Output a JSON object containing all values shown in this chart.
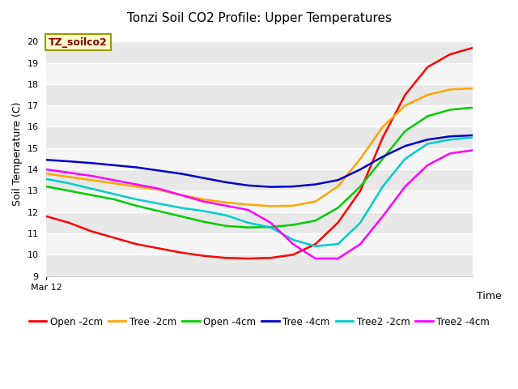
{
  "title": "Tonzi Soil CO2 Profile: Upper Temperatures",
  "ylabel": "Soil Temperature (C)",
  "xlabel": "Time",
  "annotation": "TZ_soilco2",
  "x_tick_label": "Mar 12",
  "ylim": [
    9.0,
    20.5
  ],
  "yticks": [
    9.0,
    10.0,
    11.0,
    12.0,
    13.0,
    14.0,
    15.0,
    16.0,
    17.0,
    18.0,
    19.0,
    20.0
  ],
  "series": {
    "Open -2cm": {
      "color": "#ff0000",
      "x": [
        0,
        1,
        2,
        3,
        4,
        5,
        6,
        7,
        8,
        9,
        10,
        11,
        12,
        13,
        14,
        15,
        16,
        17,
        18,
        19
      ],
      "y": [
        11.8,
        11.5,
        11.1,
        10.8,
        10.5,
        10.3,
        10.1,
        9.95,
        9.85,
        9.82,
        9.85,
        10.0,
        10.5,
        11.5,
        13.0,
        15.5,
        17.5,
        18.8,
        19.4,
        19.7
      ]
    },
    "Tree -2cm": {
      "color": "#ffa500",
      "x": [
        0,
        1,
        2,
        3,
        4,
        5,
        6,
        7,
        8,
        9,
        10,
        11,
        12,
        13,
        14,
        15,
        16,
        17,
        18,
        19
      ],
      "y": [
        13.8,
        13.65,
        13.5,
        13.35,
        13.2,
        13.05,
        12.8,
        12.6,
        12.45,
        12.35,
        12.28,
        12.3,
        12.5,
        13.2,
        14.5,
        16.0,
        17.0,
        17.5,
        17.75,
        17.8
      ]
    },
    "Open -4cm": {
      "color": "#00cc00",
      "x": [
        0,
        1,
        2,
        3,
        4,
        5,
        6,
        7,
        8,
        9,
        10,
        11,
        12,
        13,
        14,
        15,
        16,
        17,
        18,
        19
      ],
      "y": [
        13.2,
        13.0,
        12.8,
        12.6,
        12.3,
        12.05,
        11.8,
        11.55,
        11.35,
        11.28,
        11.3,
        11.4,
        11.6,
        12.2,
        13.2,
        14.5,
        15.8,
        16.5,
        16.8,
        16.9
      ]
    },
    "Tree -4cm": {
      "color": "#0000cc",
      "x": [
        0,
        1,
        2,
        3,
        4,
        5,
        6,
        7,
        8,
        9,
        10,
        11,
        12,
        13,
        14,
        15,
        16,
        17,
        18,
        19
      ],
      "y": [
        14.45,
        14.38,
        14.3,
        14.2,
        14.1,
        13.95,
        13.8,
        13.6,
        13.4,
        13.25,
        13.18,
        13.2,
        13.3,
        13.5,
        14.0,
        14.6,
        15.1,
        15.4,
        15.55,
        15.6
      ]
    },
    "Tree2 -2cm": {
      "color": "#00cccc",
      "x": [
        0,
        1,
        2,
        3,
        4,
        5,
        6,
        7,
        8,
        9,
        10,
        11,
        12,
        13,
        14,
        15,
        16,
        17,
        18,
        19
      ],
      "y": [
        13.55,
        13.35,
        13.1,
        12.85,
        12.6,
        12.4,
        12.2,
        12.05,
        11.85,
        11.5,
        11.28,
        10.7,
        10.4,
        10.5,
        11.5,
        13.2,
        14.5,
        15.2,
        15.4,
        15.5
      ]
    },
    "Tree2 -4cm": {
      "color": "#ff00ff",
      "x": [
        0,
        1,
        2,
        3,
        4,
        5,
        6,
        7,
        8,
        9,
        10,
        11,
        12,
        13,
        14,
        15,
        16,
        17,
        18,
        19
      ],
      "y": [
        14.0,
        13.85,
        13.7,
        13.5,
        13.3,
        13.1,
        12.8,
        12.5,
        12.3,
        12.1,
        11.5,
        10.5,
        9.82,
        9.82,
        10.5,
        11.8,
        13.2,
        14.2,
        14.75,
        14.9
      ]
    }
  },
  "n_points": 20,
  "linewidth": 1.8,
  "band_colors": [
    "#e8e8e8",
    "#f5f5f5"
  ],
  "title_fontsize": 11,
  "label_fontsize": 9,
  "tick_fontsize": 8,
  "legend_fontsize": 8.5
}
